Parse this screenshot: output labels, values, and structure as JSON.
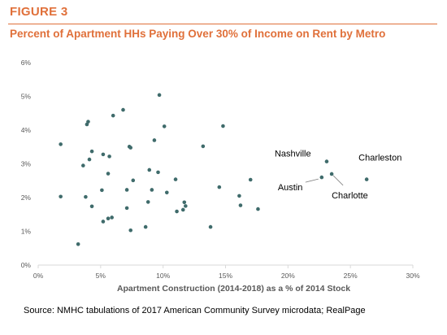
{
  "figure_label": "FIGURE 3",
  "source": "Source: NMHC tabulations of 2017 American Community Survey microdata; RealPage",
  "colors": {
    "accent": "#e0703a",
    "point": "#3f6b6b",
    "axis": "#d9d9d9",
    "tick_text": "#595959"
  },
  "chart_data": {
    "type": "scatter",
    "title": "Percent of Apartment HHs Paying Over 30% of Income on Rent by Metro",
    "xlabel": "Apartment Construction (2014-2018) as a % of 2014 Stock",
    "ylabel": "",
    "xlim": [
      0,
      30
    ],
    "ylim": [
      0,
      6
    ],
    "x_ticks": [
      "0%",
      "5%",
      "10%",
      "15%",
      "20%",
      "25%",
      "30%"
    ],
    "y_ticks": [
      "0%",
      "1%",
      "2%",
      "3%",
      "4%",
      "5%",
      "6%"
    ],
    "grid": false,
    "points": [
      {
        "x": 1.8,
        "y": 3.58
      },
      {
        "x": 1.8,
        "y": 2.03
      },
      {
        "x": 3.2,
        "y": 0.62
      },
      {
        "x": 3.6,
        "y": 2.95
      },
      {
        "x": 3.8,
        "y": 2.02
      },
      {
        "x": 3.9,
        "y": 4.17
      },
      {
        "x": 4.0,
        "y": 4.25
      },
      {
        "x": 4.1,
        "y": 3.13
      },
      {
        "x": 4.3,
        "y": 1.74
      },
      {
        "x": 4.3,
        "y": 3.37
      },
      {
        "x": 5.1,
        "y": 2.22
      },
      {
        "x": 5.2,
        "y": 1.29
      },
      {
        "x": 5.2,
        "y": 3.28
      },
      {
        "x": 5.6,
        "y": 2.71
      },
      {
        "x": 5.6,
        "y": 1.38
      },
      {
        "x": 5.7,
        "y": 3.22
      },
      {
        "x": 5.9,
        "y": 1.41
      },
      {
        "x": 6.0,
        "y": 4.43
      },
      {
        "x": 6.8,
        "y": 4.6
      },
      {
        "x": 7.1,
        "y": 1.69
      },
      {
        "x": 7.1,
        "y": 2.23
      },
      {
        "x": 7.3,
        "y": 3.51
      },
      {
        "x": 7.4,
        "y": 3.48
      },
      {
        "x": 7.4,
        "y": 1.03
      },
      {
        "x": 7.6,
        "y": 2.51
      },
      {
        "x": 8.6,
        "y": 1.13
      },
      {
        "x": 8.8,
        "y": 1.87
      },
      {
        "x": 8.9,
        "y": 2.82
      },
      {
        "x": 9.1,
        "y": 2.23
      },
      {
        "x": 9.3,
        "y": 3.7
      },
      {
        "x": 9.6,
        "y": 2.75
      },
      {
        "x": 9.7,
        "y": 5.04
      },
      {
        "x": 10.1,
        "y": 4.11
      },
      {
        "x": 10.3,
        "y": 2.15
      },
      {
        "x": 11.0,
        "y": 2.54
      },
      {
        "x": 11.1,
        "y": 1.59
      },
      {
        "x": 11.6,
        "y": 1.64
      },
      {
        "x": 11.7,
        "y": 1.86
      },
      {
        "x": 11.8,
        "y": 1.75
      },
      {
        "x": 13.2,
        "y": 3.52
      },
      {
        "x": 13.8,
        "y": 1.13
      },
      {
        "x": 14.5,
        "y": 2.31
      },
      {
        "x": 14.8,
        "y": 4.12
      },
      {
        "x": 16.1,
        "y": 2.05
      },
      {
        "x": 16.2,
        "y": 1.77
      },
      {
        "x": 17.0,
        "y": 2.53
      },
      {
        "x": 17.6,
        "y": 1.66
      },
      {
        "x": 23.1,
        "y": 3.07,
        "label": "Nashville"
      },
      {
        "x": 22.7,
        "y": 2.6,
        "label": "Austin"
      },
      {
        "x": 23.5,
        "y": 2.7,
        "label": "Charlotte"
      },
      {
        "x": 26.3,
        "y": 2.54,
        "label": "Charleston"
      }
    ]
  }
}
